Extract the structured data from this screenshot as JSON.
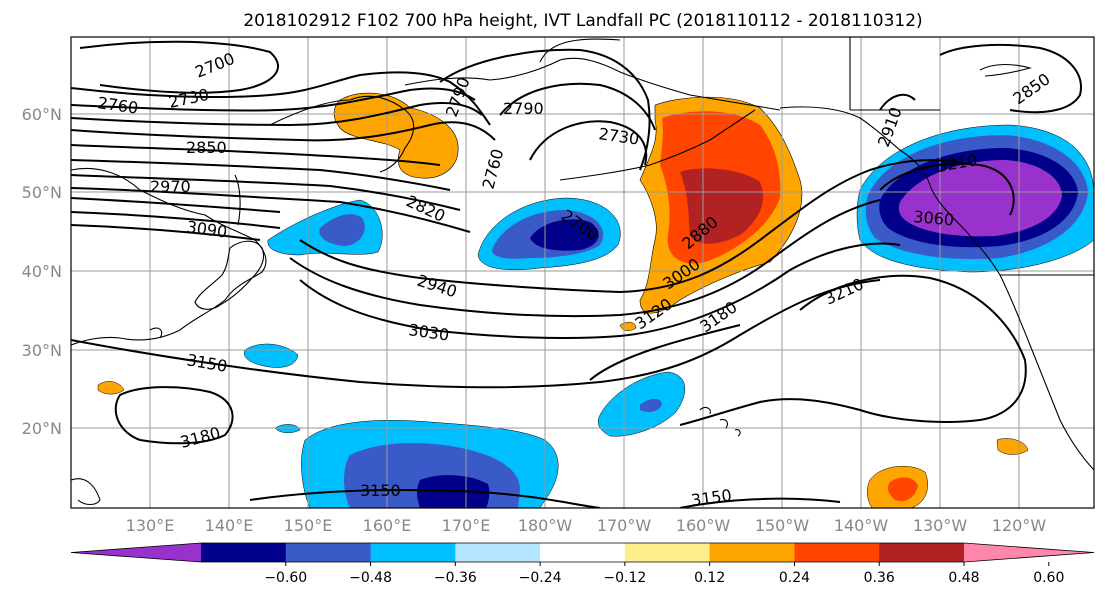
{
  "figure": {
    "title": "2018102912 F102 700 hPa height, IVT Landfall PC (2018110112 - 2018110312)"
  },
  "map": {
    "lat_labels": [
      "60°N",
      "50°N",
      "40°N",
      "30°N",
      "20°N"
    ],
    "lon_labels": [
      "130°E",
      "140°E",
      "150°E",
      "160°E",
      "170°E",
      "180°W",
      "170°W",
      "160°W",
      "150°W",
      "140°W",
      "130°W",
      "120°W"
    ],
    "contour_labels": [
      "2700",
      "2730",
      "2760",
      "2850",
      "2970",
      "3090",
      "2790",
      "2790",
      "2730",
      "2760",
      "2820",
      "2700",
      "2940",
      "3030",
      "3150",
      "3180",
      "3150",
      "2880",
      "3000",
      "3120",
      "3180",
      "3210",
      "3150",
      "2850",
      "3060",
      "3210",
      "2910"
    ],
    "shading_colors": {
      "strong_negative": "#9932cc",
      "negative_2": "#00008b",
      "negative_3": "#3a5bc7",
      "negative_4": "#00bfff",
      "positive_2": "#ffa500",
      "positive_3": "#ff4500",
      "positive_4": "#b22222"
    }
  },
  "colorbar": {
    "tick_labels": [
      "−0.60",
      "−0.48",
      "−0.36",
      "−0.24",
      "−0.12",
      "0.12",
      "0.24",
      "0.36",
      "0.48",
      "0.60"
    ],
    "colors": [
      "#9932cc",
      "#00008b",
      "#3a5bc7",
      "#00bfff",
      "#b3e5ff",
      "#ffffff",
      "#ffec8b",
      "#ffa500",
      "#ff4500",
      "#b22222",
      "#ff88aa"
    ]
  }
}
